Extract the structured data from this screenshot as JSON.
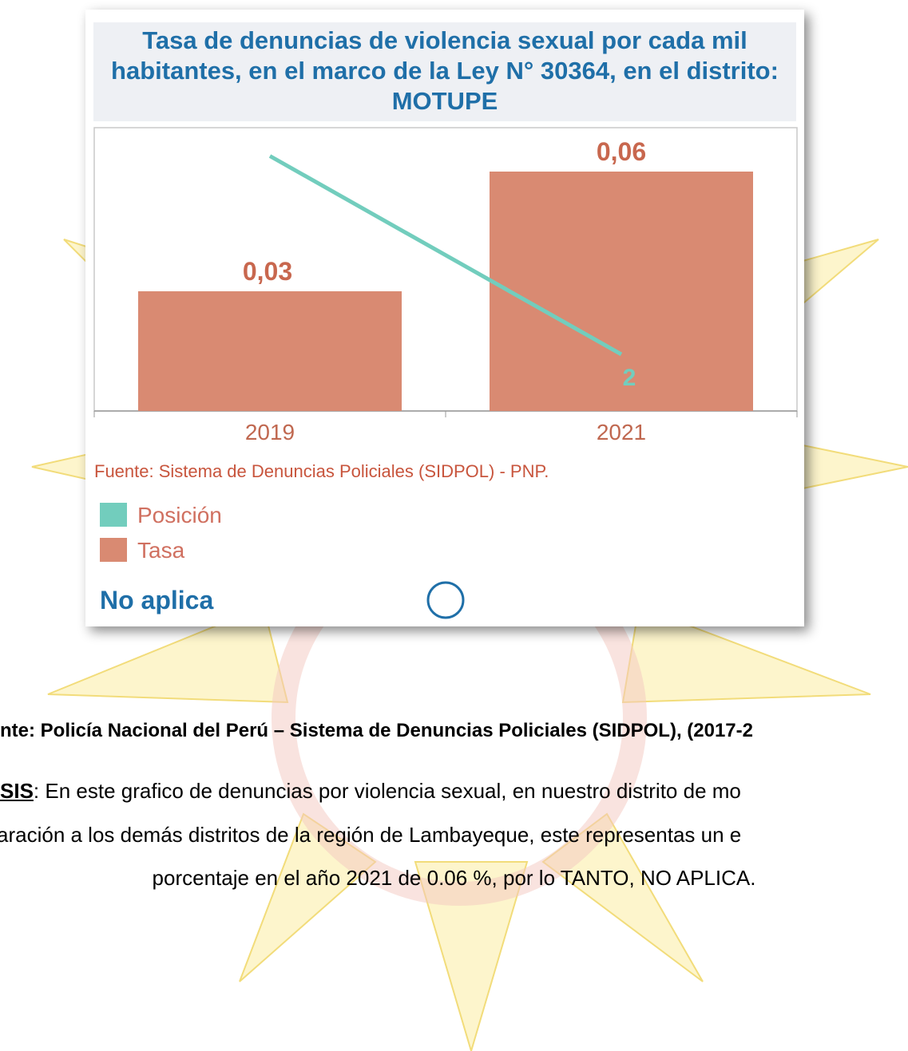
{
  "chart_data": {
    "type": "bar_line",
    "title": "Tasa de denuncias de violencia sexual por cada mil habitantes, en el marco de la Ley N° 30364, en el distrito: MOTUPE",
    "categories": [
      "2019",
      "2021"
    ],
    "series": [
      {
        "name": "Posición",
        "type": "line",
        "axis": "y2",
        "color": "#72cdbd",
        "values": [
          9,
          2
        ]
      },
      {
        "name": "Tasa",
        "type": "bar",
        "color": "#d98a72",
        "values": [
          0.03,
          0.06
        ],
        "value_labels": [
          "0,03",
          "0,06"
        ]
      }
    ],
    "ylim": [
      0,
      0.071
    ],
    "y2lim": [
      0,
      10
    ],
    "source": "Fuente: Sistema de Denuncias Policiales (SIDPOL) - PNP.",
    "note": "No aplica"
  },
  "document": {
    "source": "nte: Policía Nacional del Perú – Sistema de Denuncias Policiales (SIDPOL), (2017-2",
    "analysis_label": "SIS",
    "analysis_lines": [
      ": En este grafico de denuncias por violencia sexual, en nuestro distrito de mo",
      "aración a los demás distritos de la región de Lambayeque, este representas un e",
      "porcentaje en el año 2021 de 0.06 %, por lo TANTO, NO APLICA."
    ]
  }
}
